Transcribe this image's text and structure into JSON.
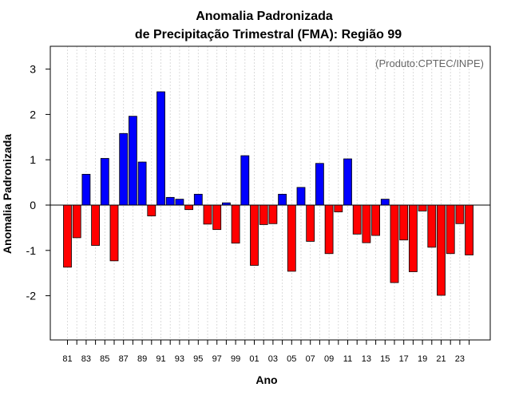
{
  "chart_data": {
    "type": "bar",
    "title": "Anomalia Padronizada",
    "subtitle": "de Precipitação Trimestral (FMA): Região 99",
    "xlabel": "Ano",
    "ylabel": "Anomalia Padronizada",
    "credit": "(Produto:CPTEC/INPE)",
    "ylim": [
      -3,
      3.5
    ],
    "yticks": [
      -2,
      -1,
      0,
      1,
      2,
      3
    ],
    "years": [
      1981,
      1982,
      1983,
      1984,
      1985,
      1986,
      1987,
      1988,
      1989,
      1990,
      1991,
      1992,
      1993,
      1994,
      1995,
      1996,
      1997,
      1998,
      1999,
      2000,
      2001,
      2002,
      2003,
      2004,
      2005,
      2006,
      2007,
      2008,
      2009,
      2010,
      2011,
      2012,
      2013,
      2014,
      2015,
      2016,
      2017,
      2018,
      2019,
      2020,
      2021,
      2022,
      2023,
      2024
    ],
    "tick_labels": [
      "81",
      "83",
      "85",
      "87",
      "89",
      "91",
      "93",
      "95",
      "97",
      "99",
      "01",
      "03",
      "05",
      "07",
      "09",
      "11",
      "13",
      "15",
      "17",
      "19",
      "21",
      "23"
    ],
    "values": [
      -1.37,
      -0.72,
      0.68,
      -0.89,
      1.03,
      -1.23,
      1.58,
      1.96,
      0.95,
      -0.24,
      2.5,
      0.17,
      0.13,
      -0.1,
      0.24,
      -0.42,
      -0.54,
      0.05,
      -0.84,
      1.09,
      -1.33,
      -0.43,
      -0.41,
      0.24,
      -1.46,
      0.39,
      -0.8,
      0.92,
      -1.07,
      -0.15,
      1.02,
      -0.64,
      -0.83,
      -0.67,
      0.13,
      -1.71,
      -0.77,
      -1.47,
      -0.13,
      -0.93,
      -1.99,
      -1.07,
      -0.41,
      -1.1
    ],
    "colors": {
      "positive": "#0000ff",
      "negative": "#ff0000",
      "grid": "#d3d3d3"
    }
  }
}
